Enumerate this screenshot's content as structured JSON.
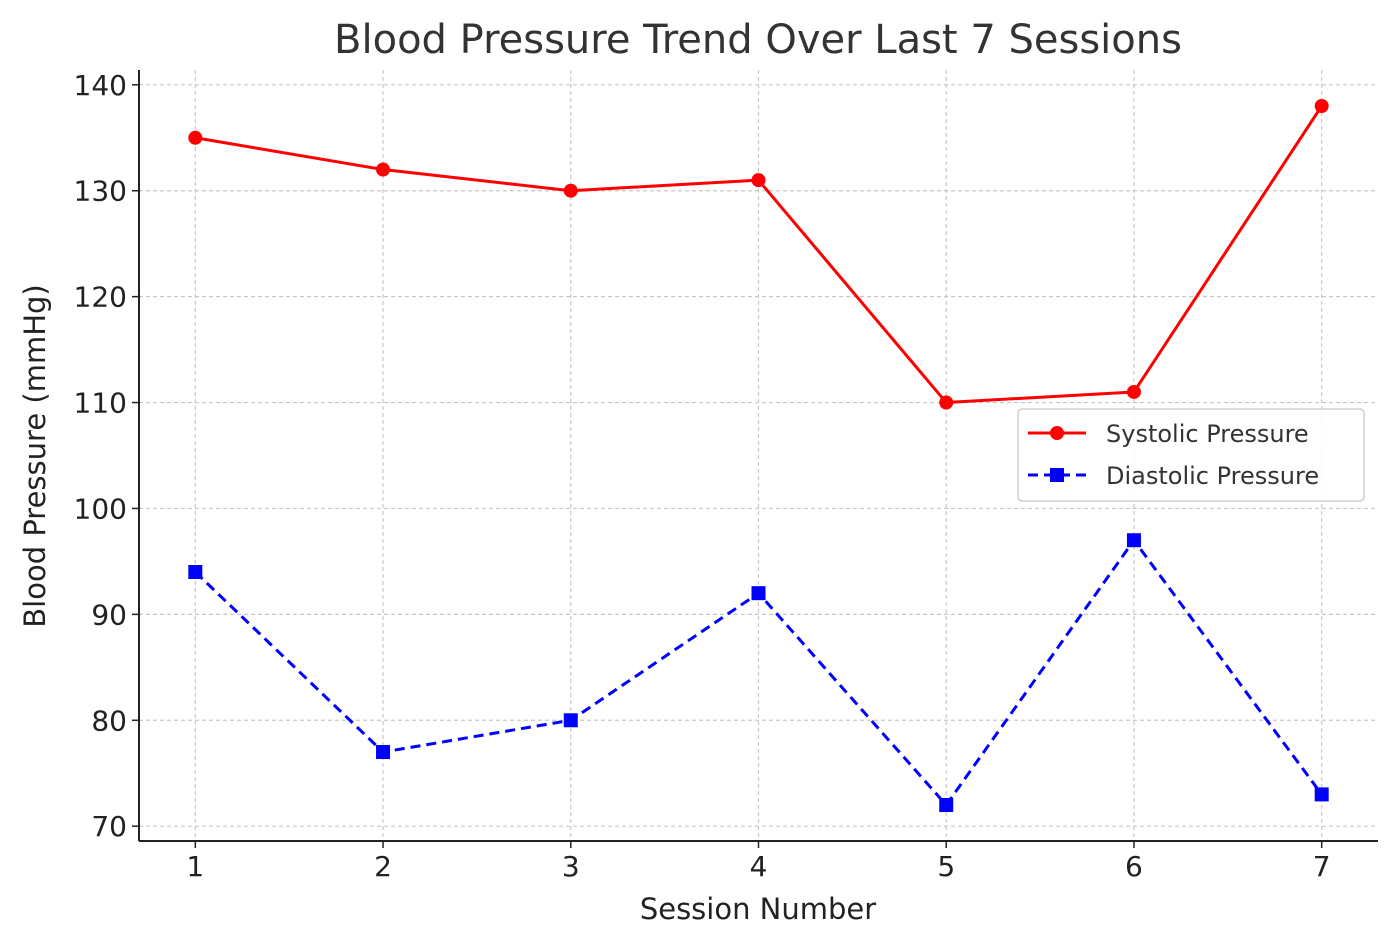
{
  "chart_data": {
    "type": "line",
    "title": "Blood Pressure Trend Over Last 7 Sessions",
    "xlabel": "Session Number",
    "ylabel": "Blood Pressure (mmHg)",
    "x": [
      1,
      2,
      3,
      4,
      5,
      6,
      7
    ],
    "xlim": [
      0.7,
      7.3
    ],
    "ylim": [
      68.6,
      141.4
    ],
    "yticks": [
      70,
      80,
      90,
      100,
      110,
      120,
      130,
      140
    ],
    "grid": true,
    "legend_position": "center-right",
    "series": [
      {
        "name": "Systolic Pressure",
        "values": [
          135,
          132,
          130,
          131,
          110,
          111,
          138
        ],
        "color": "#ff0000",
        "line_style": "solid",
        "marker": "circle"
      },
      {
        "name": "Diastolic Pressure",
        "values": [
          94,
          77,
          80,
          92,
          72,
          97,
          73
        ],
        "color": "#0000ff",
        "line_style": "dashed",
        "marker": "square"
      }
    ]
  }
}
